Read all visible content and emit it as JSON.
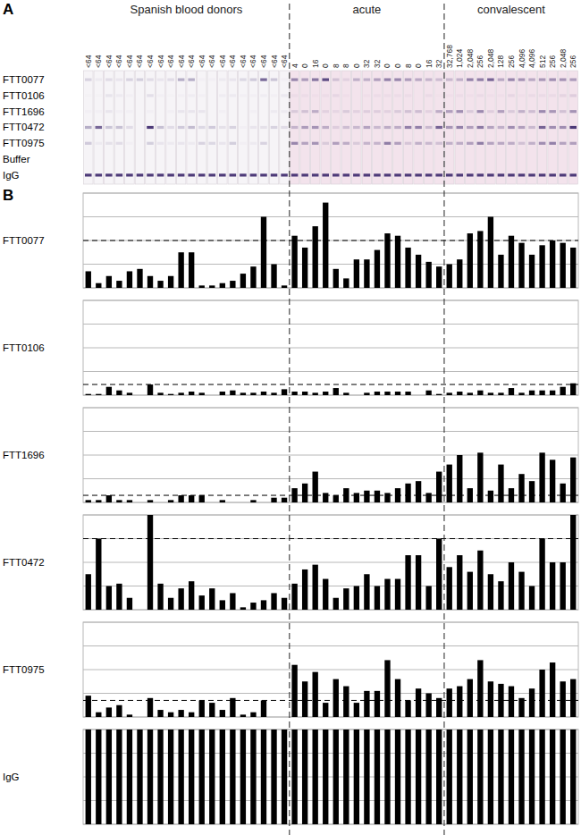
{
  "panel_labels": [
    "A",
    "B"
  ],
  "groups": [
    {
      "label": "Spanish blood donors",
      "titers": [
        "<64",
        "<64",
        "<64",
        "<64",
        "<64",
        "<64",
        "<64",
        "<64",
        "<64",
        "<64",
        "<64",
        "<64",
        "<64",
        "<64",
        "<64",
        "<64",
        "<64",
        "<64",
        "<64",
        "<64"
      ]
    },
    {
      "label": "acute",
      "titers": [
        "4",
        "0",
        "16",
        "0",
        "8",
        "8",
        "0",
        "32",
        "32",
        "0",
        "0",
        "8",
        "0",
        "16",
        "32"
      ]
    },
    {
      "label": "convalescent",
      "titers": [
        "32,768",
        "1,024",
        "2,048",
        "256",
        "2,048",
        "128",
        "256",
        "4,096",
        "4,096",
        "512",
        "256",
        "2,048",
        "256"
      ]
    }
  ],
  "strip_rows": [
    "FTT0077",
    "FTT0106",
    "FTT1696",
    "FTT0472",
    "FTT0975",
    "Buffer",
    "IgG"
  ],
  "chart_data": [
    {
      "type": "bar",
      "title": "FTT0077",
      "color": "#000000",
      "grid": true,
      "tick_labels": false,
      "ylim": [
        0,
        4
      ],
      "yticks": [
        0,
        1,
        2,
        3,
        4
      ],
      "cutoff": 2,
      "categories": [
        null,
        null,
        null,
        null,
        null,
        null,
        null,
        null,
        null,
        null,
        null,
        null,
        null,
        null,
        null,
        null,
        null,
        null,
        null,
        null,
        null,
        null,
        null,
        null,
        null,
        null,
        null,
        null,
        null,
        null,
        null,
        null,
        null,
        null,
        null,
        null,
        null,
        null,
        null,
        null,
        null,
        null,
        null,
        null,
        null,
        null,
        null,
        null
      ],
      "values": [
        0.7,
        0.2,
        0.5,
        0.3,
        0.7,
        0.8,
        0.5,
        0.3,
        0.5,
        1.5,
        1.5,
        0.1,
        0.1,
        0.2,
        0.3,
        0.6,
        0.9,
        3.0,
        1.0,
        0.1,
        2.2,
        1.7,
        2.6,
        3.6,
        0.8,
        0.4,
        1.2,
        1.2,
        1.6,
        2.3,
        2.2,
        1.7,
        1.4,
        1.1,
        0.9,
        1.0,
        1.2,
        2.3,
        2.4,
        3.0,
        1.4,
        2.2,
        1.9,
        1.4,
        1.8,
        2.0,
        1.9,
        1.7
      ]
    },
    {
      "type": "bar",
      "title": "FTT0106",
      "color": "#000000",
      "grid": true,
      "tick_labels": false,
      "ylim": [
        0,
        4
      ],
      "yticks": [
        0,
        1,
        2,
        3,
        4
      ],
      "cutoff": 0.45,
      "categories": [
        null,
        null,
        null,
        null,
        null,
        null,
        null,
        null,
        null,
        null,
        null,
        null,
        null,
        null,
        null,
        null,
        null,
        null,
        null,
        null,
        null,
        null,
        null,
        null,
        null,
        null,
        null,
        null,
        null,
        null,
        null,
        null,
        null,
        null,
        null,
        null,
        null,
        null,
        null,
        null,
        null,
        null,
        null,
        null,
        null,
        null,
        null,
        null
      ],
      "values": [
        0.05,
        0.05,
        0.35,
        0.2,
        0.1,
        0,
        0.45,
        0.1,
        0.05,
        0.1,
        0.15,
        0.1,
        0,
        0.15,
        0.2,
        0.1,
        0.1,
        0.15,
        0.1,
        0.25,
        0.15,
        0.15,
        0.1,
        0.15,
        0.3,
        0.1,
        0,
        0.1,
        0.15,
        0.15,
        0.15,
        0.15,
        0,
        0.2,
        0.05,
        0.1,
        0.15,
        0.1,
        0.2,
        0.1,
        0.1,
        0.3,
        0.1,
        0.2,
        0.2,
        0.2,
        0.35,
        0.5
      ]
    },
    {
      "type": "bar",
      "title": "FTT1696",
      "color": "#000000",
      "grid": true,
      "tick_labels": false,
      "ylim": [
        0,
        4
      ],
      "yticks": [
        0,
        1,
        2,
        3,
        4
      ],
      "cutoff": 0.3,
      "categories": [
        null,
        null,
        null,
        null,
        null,
        null,
        null,
        null,
        null,
        null,
        null,
        null,
        null,
        null,
        null,
        null,
        null,
        null,
        null,
        null,
        null,
        null,
        null,
        null,
        null,
        null,
        null,
        null,
        null,
        null,
        null,
        null,
        null,
        null,
        null,
        null,
        null,
        null,
        null,
        null,
        null,
        null,
        null,
        null,
        null,
        null,
        null,
        null
      ],
      "values": [
        0.1,
        0.1,
        0.3,
        0.1,
        0.1,
        0,
        0.1,
        0,
        0.1,
        0.3,
        0.3,
        0.3,
        0,
        0.1,
        0,
        0,
        0.1,
        0,
        0.2,
        0.2,
        0.6,
        0.8,
        1.3,
        0.4,
        0.3,
        0.6,
        0.4,
        0.5,
        0.5,
        0.4,
        0.6,
        0.8,
        0.9,
        0.4,
        1.3,
        1.6,
        2.0,
        0.6,
        2.1,
        0.5,
        1.6,
        0.6,
        1.2,
        0.9,
        2.1,
        1.8,
        0.8,
        1.9
      ]
    },
    {
      "type": "bar",
      "title": "FTT0472",
      "color": "#000000",
      "grid": true,
      "tick_labels": false,
      "ylim": [
        0,
        4
      ],
      "yticks": [
        0,
        1,
        2,
        3,
        4
      ],
      "cutoff": 3,
      "categories": [
        null,
        null,
        null,
        null,
        null,
        null,
        null,
        null,
        null,
        null,
        null,
        null,
        null,
        null,
        null,
        null,
        null,
        null,
        null,
        null,
        null,
        null,
        null,
        null,
        null,
        null,
        null,
        null,
        null,
        null,
        null,
        null,
        null,
        null,
        null,
        null,
        null,
        null,
        null,
        null,
        null,
        null,
        null,
        null,
        null,
        null,
        null,
        null
      ],
      "values": [
        1.5,
        3.0,
        1.0,
        1.1,
        0.5,
        0,
        4.0,
        1.1,
        0.5,
        0.9,
        1.2,
        0.6,
        0.9,
        0.4,
        0.7,
        0.1,
        0.3,
        0.4,
        0.7,
        0.5,
        1.1,
        1.7,
        1.9,
        1.3,
        0.5,
        0.9,
        1.0,
        1.5,
        1.0,
        1.3,
        1.3,
        2.3,
        2.3,
        1.0,
        3.0,
        1.8,
        2.3,
        1.6,
        2.5,
        1.5,
        1.2,
        2.0,
        1.6,
        1.0,
        3.0,
        2.0,
        2.0,
        4.0
      ]
    },
    {
      "type": "bar",
      "title": "FTT0975",
      "color": "#000000",
      "grid": true,
      "tick_labels": false,
      "ylim": [
        0,
        4
      ],
      "yticks": [
        0,
        1,
        2,
        3,
        4
      ],
      "cutoff": 0.7,
      "categories": [
        null,
        null,
        null,
        null,
        null,
        null,
        null,
        null,
        null,
        null,
        null,
        null,
        null,
        null,
        null,
        null,
        null,
        null,
        null,
        null,
        null,
        null,
        null,
        null,
        null,
        null,
        null,
        null,
        null,
        null,
        null,
        null,
        null,
        null,
        null,
        null,
        null,
        null,
        null,
        null,
        null,
        null,
        null,
        null,
        null,
        null,
        null,
        null
      ],
      "values": [
        0.9,
        0.2,
        0.4,
        0.5,
        0.1,
        0,
        0.8,
        0.3,
        0.2,
        0.3,
        0.2,
        0.7,
        0.6,
        0.3,
        0.8,
        0.1,
        0.2,
        0.7,
        0,
        0,
        2.2,
        1.5,
        1.9,
        0.6,
        1.6,
        1.3,
        0.6,
        1.1,
        1.1,
        2.4,
        1.6,
        0.7,
        1.2,
        1.0,
        0.8,
        1.2,
        1.3,
        1.6,
        2.4,
        1.5,
        1.4,
        1.3,
        0.8,
        1.2,
        2.0,
        2.3,
        1.5,
        1.6
      ]
    },
    {
      "type": "bar",
      "title": "IgG",
      "color": "#000000",
      "grid": true,
      "tick_labels": false,
      "ylim": [
        0,
        4
      ],
      "yticks": [
        0,
        1,
        2,
        3,
        4
      ],
      "categories": [
        null,
        null,
        null,
        null,
        null,
        null,
        null,
        null,
        null,
        null,
        null,
        null,
        null,
        null,
        null,
        null,
        null,
        null,
        null,
        null,
        null,
        null,
        null,
        null,
        null,
        null,
        null,
        null,
        null,
        null,
        null,
        null,
        null,
        null,
        null,
        null,
        null,
        null,
        null,
        null,
        null,
        null,
        null,
        null,
        null,
        null,
        null,
        null
      ],
      "values": [
        4,
        4,
        4,
        4,
        4,
        4,
        4,
        4,
        4,
        4,
        4,
        4,
        4,
        4,
        4,
        4,
        4,
        4,
        4,
        4,
        4,
        4,
        4,
        4,
        4,
        4,
        4,
        4,
        4,
        4,
        4,
        4,
        4,
        4,
        4,
        4,
        4,
        4,
        4,
        4,
        4,
        4,
        4,
        4,
        4,
        4,
        4,
        4
      ]
    }
  ]
}
